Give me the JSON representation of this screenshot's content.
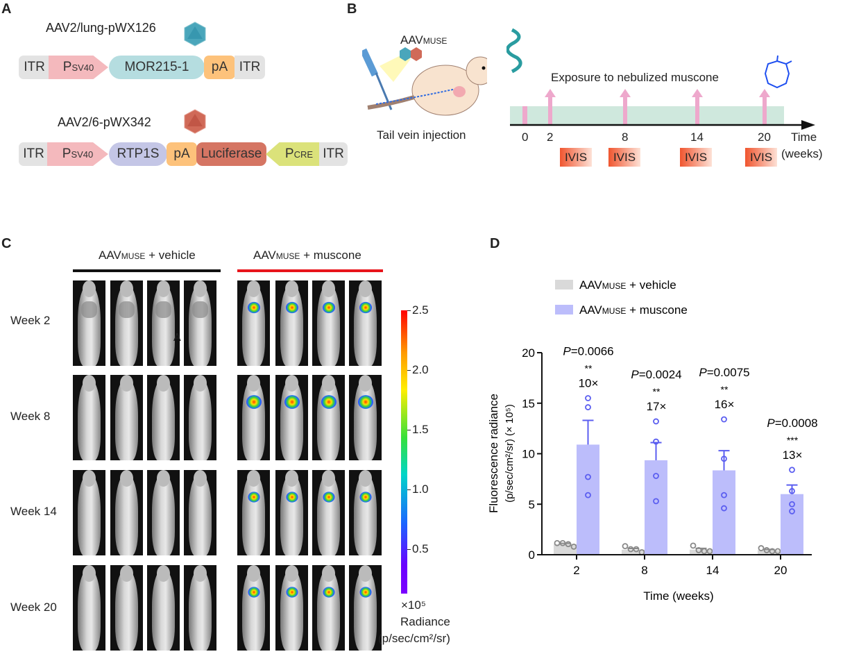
{
  "panels": {
    "a": "A",
    "b": "B",
    "c": "C",
    "d": "D"
  },
  "panel_a": {
    "construct1": {
      "name": "AAV2/lung-pWX126",
      "parts": [
        "ITR",
        "P",
        "SV40",
        "MOR215-1",
        "pA",
        "ITR"
      ]
    },
    "construct2": {
      "name": "AAV2/6-pWX342",
      "parts": [
        "ITR",
        "P",
        "SV40",
        "RTP1S",
        "pA",
        "Luciferase",
        "P",
        "CRE",
        "ITR"
      ]
    },
    "colors": {
      "itr": "#e3e3e3",
      "promoter": "#f4b9bd",
      "mor": "#b5dde0",
      "pa": "#fdc27b",
      "rtp": "#c4c6e6",
      "luc": "#d57563",
      "pcre": "#dbe27a"
    }
  },
  "panel_b": {
    "vector_main": "AAV",
    "vector_sub": "MUSE",
    "injection_label": "Tail vein injection",
    "exposure_label": "Exposure to nebulized muscone",
    "timepoints": [
      "0",
      "2",
      "8",
      "14",
      "20"
    ],
    "axis_label_1": "Time",
    "axis_label_2": "(weeks)",
    "imaging_label": "IVIS"
  },
  "panel_c": {
    "group1": {
      "main": "AAV",
      "sub": "MUSE",
      "rest": " + vehicle",
      "color": "#111111"
    },
    "group2": {
      "main": "AAV",
      "sub": "MUSE",
      "rest": " + muscone",
      "color": "#e8141b"
    },
    "rows": [
      "Week 2",
      "Week 8",
      "Week 14",
      "Week 20"
    ],
    "stray_mark": "A",
    "colorbar": {
      "ticks": [
        "2.5",
        "2.0",
        "1.5",
        "1.0",
        "0.5"
      ],
      "unit": "×10⁵",
      "label": "Radiance",
      "label_units": "(p/sec/cm²/sr)"
    }
  },
  "chart_data": {
    "type": "bar",
    "categories": [
      "2",
      "8",
      "14",
      "20"
    ],
    "xlabel": "Time (weeks)",
    "ylabel_1": "Fluorescence radiance",
    "ylabel_2": "(p/sec/cm²/sr) (× 10⁵)",
    "ylim": [
      0,
      20
    ],
    "yticks": [
      "0",
      "5",
      "10",
      "15",
      "20"
    ],
    "legend_position": "top-left",
    "series": [
      {
        "name_main": "AAV",
        "name_sub": "MUSE",
        "name_rest": " + vehicle",
        "color": "#d9d9d9",
        "point_color": "#888888",
        "values": [
          1.05,
          0.5,
          0.5,
          0.45
        ],
        "sem": [
          0.08,
          0.12,
          0.13,
          0.07
        ],
        "points": [
          [
            1.15,
            1.15,
            1.05,
            0.8
          ],
          [
            0.85,
            0.55,
            0.55,
            0.25
          ],
          [
            0.9,
            0.45,
            0.35,
            0.35
          ],
          [
            0.65,
            0.45,
            0.35,
            0.35
          ]
        ]
      },
      {
        "name_main": "AAV",
        "name_sub": "MUSE",
        "name_rest": " + muscone",
        "color": "#bcbdfb",
        "point_color": "#5b5ef0",
        "values": [
          10.9,
          9.35,
          8.35,
          6.0
        ],
        "sem": [
          2.4,
          1.75,
          1.95,
          0.9
        ],
        "points": [
          [
            15.5,
            14.6,
            7.7,
            5.9
          ],
          [
            13.2,
            11.2,
            7.8,
            5.3
          ],
          [
            13.4,
            9.5,
            5.9,
            4.6
          ],
          [
            8.4,
            6.3,
            5.0,
            4.3
          ]
        ]
      }
    ],
    "annotations": [
      {
        "p": "=0.0066",
        "stars": "**",
        "fold": "10×"
      },
      {
        "p": "=0.0024",
        "stars": "**",
        "fold": "17×"
      },
      {
        "p": "=0.0075",
        "stars": "**",
        "fold": "16×"
      },
      {
        "p": "=0.0008",
        "stars": "***",
        "fold": "13×"
      }
    ],
    "p_symbol": "P"
  }
}
